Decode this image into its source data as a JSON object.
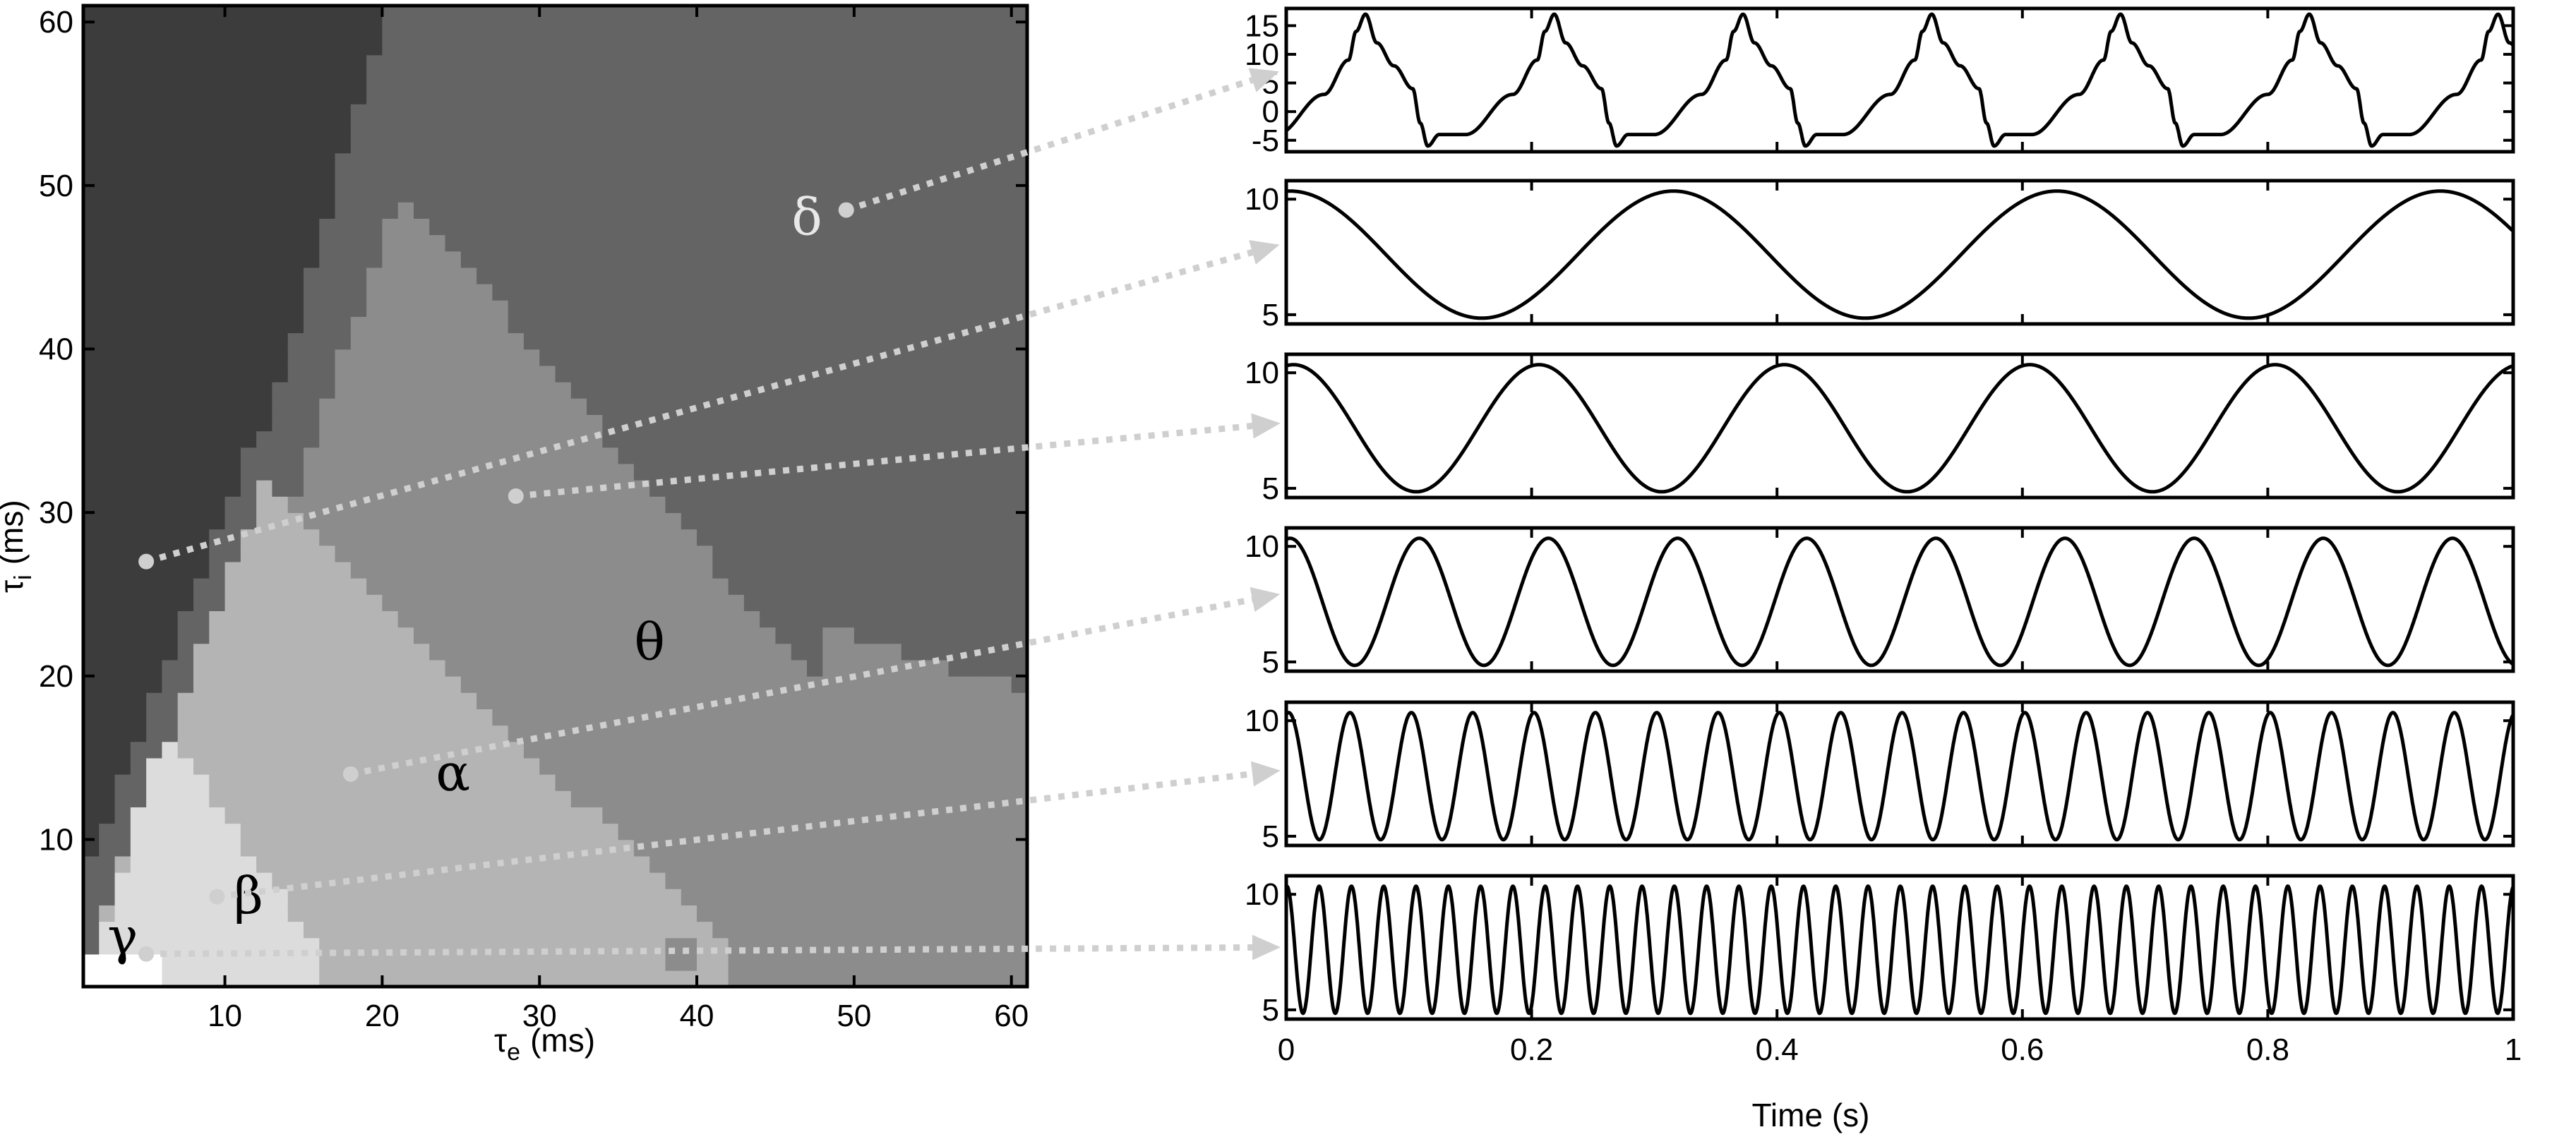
{
  "chart_data": [
    {
      "type": "heatmap",
      "xlabel": "τ",
      "xlabel_sub": "e",
      "xlabel_unit": "(ms)",
      "ylabel": "τ",
      "ylabel_sub": "i",
      "ylabel_unit": "(ms)",
      "xlim": [
        1,
        61
      ],
      "ylim": [
        1,
        61
      ],
      "x_ticks": [
        10,
        20,
        30,
        40,
        50,
        60
      ],
      "y_ticks": [
        10,
        20,
        30,
        40,
        50,
        60
      ],
      "grid": false,
      "regions": [
        {
          "label": "",
          "name": "no-oscillation",
          "color": "#3c3c3c"
        },
        {
          "label": "δ",
          "name": "delta",
          "color": "#646464"
        },
        {
          "label": "θ",
          "name": "theta",
          "color": "#8c8c8c"
        },
        {
          "label": "α",
          "name": "alpha",
          "color": "#b4b4b4"
        },
        {
          "label": "β",
          "name": "beta",
          "color": "#dcdcdc"
        },
        {
          "label": "γ",
          "name": "gamma",
          "color": "#ffffff"
        }
      ],
      "region_labels": [
        {
          "text": "δ",
          "x": 47,
          "y": 47,
          "region": "delta"
        },
        {
          "text": "θ",
          "x": 37,
          "y": 21,
          "region": "theta"
        },
        {
          "text": "α",
          "x": 24.5,
          "y": 13,
          "region": "alpha"
        },
        {
          "text": "β",
          "x": 11.5,
          "y": 5.5,
          "region": "beta"
        },
        {
          "text": "γ",
          "x": 3.5,
          "y": 3,
          "region": "gamma"
        }
      ],
      "sample_points": [
        {
          "x": 49.5,
          "y": 48.5,
          "trace": 0
        },
        {
          "x": 5,
          "y": 27,
          "trace": 1
        },
        {
          "x": 28.5,
          "y": 31,
          "trace": 2
        },
        {
          "x": 18,
          "y": 14,
          "trace": 3
        },
        {
          "x": 9.5,
          "y": 6.5,
          "trace": 4
        },
        {
          "x": 5,
          "y": 3,
          "trace": 5
        }
      ]
    },
    {
      "type": "line",
      "xlabel": "Time (s)",
      "xlim": [
        0,
        1
      ],
      "x_ticks": [
        "0",
        "0.2",
        "0.4",
        "0.6",
        "0.8",
        "1"
      ],
      "x_tick_values": [
        0,
        0.2,
        0.4,
        0.6,
        0.8,
        1
      ],
      "series": [
        {
          "kind": "spiky",
          "freq_hz": 6.5,
          "phase": 0.05,
          "ylim": [
            -7,
            18
          ],
          "y_ticks": [
            -5,
            0,
            5,
            10,
            15
          ]
        },
        {
          "kind": "sine",
          "freq_hz": 3.2,
          "phase": -0.01,
          "ylim": [
            4.6,
            10.8
          ],
          "y_ticks": [
            5,
            10
          ]
        },
        {
          "kind": "sine",
          "freq_hz": 5.0,
          "phase": -0.03,
          "ylim": [
            4.6,
            10.8
          ],
          "y_ticks": [
            5,
            10
          ]
        },
        {
          "kind": "sine",
          "freq_hz": 9.5,
          "phase": -0.03,
          "ylim": [
            4.6,
            10.8
          ],
          "y_ticks": [
            5,
            10
          ]
        },
        {
          "kind": "sine",
          "freq_hz": 20.0,
          "phase": -0.04,
          "ylim": [
            4.6,
            10.8
          ],
          "y_ticks": [
            5,
            10
          ]
        },
        {
          "kind": "sine",
          "freq_hz": 38.0,
          "phase": -0.02,
          "ylim": [
            4.6,
            10.8
          ],
          "y_ticks": [
            5,
            10
          ]
        }
      ]
    }
  ]
}
